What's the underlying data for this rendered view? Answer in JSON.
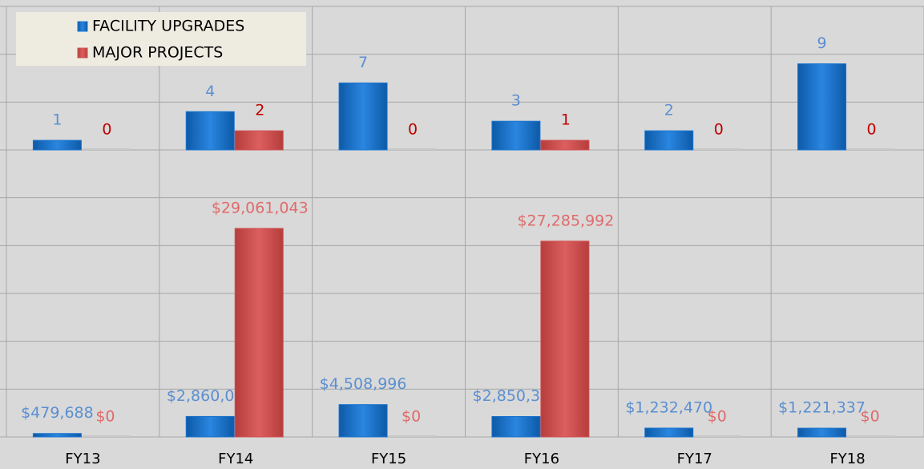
{
  "chart_data": [
    {
      "type": "bar",
      "series": [
        {
          "name": "FACILITY UPGRADES",
          "color": "#1a75cf",
          "label_color": "#5b8fd0",
          "values": [
            1,
            4,
            7,
            3,
            2,
            9
          ]
        },
        {
          "name": "MAJOR PROJECTS",
          "color": "#d0504f",
          "label_color": "#c00000",
          "values": [
            0,
            2,
            0,
            1,
            0,
            0
          ]
        }
      ],
      "ylim": [
        0,
        15
      ],
      "yticks": [
        0,
        5,
        10,
        15
      ],
      "grid": true,
      "legend": "upper left"
    },
    {
      "type": "bar",
      "categories": [
        "FY13",
        "FY14",
        "FY15",
        "FY16",
        "FY17",
        "FY18"
      ],
      "series": [
        {
          "color": "#1a75cf",
          "label_color": "#5b8fd0",
          "values": [
            479688,
            2860049,
            4508996,
            2850386,
            1232470,
            1221337
          ],
          "value_labels": [
            "$479,688",
            "$2,860,049",
            "$4,508,996",
            "$2,850,386",
            "$1,232,470",
            "$1,221,337"
          ]
        },
        {
          "color": "#d0504f",
          "label_color": "#e06b6b",
          "values": [
            0,
            29061043,
            0,
            27285992,
            0,
            0
          ],
          "value_labels": [
            "$0",
            "$29,061,043",
            "$0",
            "$27,285,992",
            "$0",
            "$0"
          ]
        }
      ],
      "ylim": [
        0,
        40000000
      ],
      "yticks": [
        0,
        6666667,
        13333333,
        20000000,
        26666667,
        33333333,
        40000000
      ],
      "grid": true
    }
  ]
}
